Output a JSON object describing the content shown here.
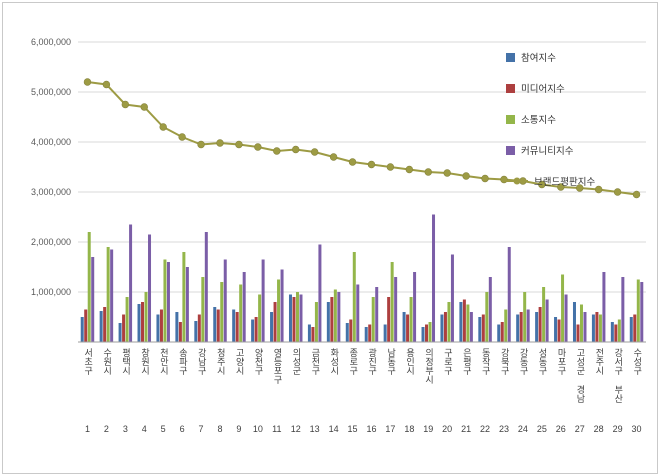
{
  "chart_data": {
    "type": "bar",
    "title": "",
    "xlabel": "",
    "ylabel": "",
    "ylim": [
      0,
      6000000
    ],
    "ytick_interval": 1000000,
    "ytick_labels": [
      "1,000,000",
      "2,000,000",
      "3,000,000",
      "4,000,000",
      "5,000,000",
      "6,000,000"
    ],
    "grid": true,
    "legend_position": "right-top",
    "categories": [
      "서초구",
      "수원시",
      "평택시",
      "창원시",
      "천안시",
      "송파구",
      "강남구",
      "청주시",
      "고양시",
      "양천구",
      "영등포구",
      "의성군",
      "금천구",
      "화성시",
      "종로구",
      "광진구",
      "남동구",
      "용인시",
      "의정부시",
      "구로구",
      "은평구",
      "동작구",
      "강북구",
      "강동구",
      "성동구",
      "마포구",
      "고성군 경남",
      "전주시",
      "강서구 부산",
      "수성구"
    ],
    "rank_labels": [
      "1",
      "2",
      "3",
      "4",
      "5",
      "6",
      "7",
      "8",
      "9",
      "10",
      "11",
      "12",
      "13",
      "14",
      "15",
      "16",
      "17",
      "18",
      "19",
      "20",
      "21",
      "22",
      "23",
      "24",
      "25",
      "26",
      "27",
      "28",
      "29",
      "30"
    ],
    "series": [
      {
        "name": "참여지수",
        "type": "bar",
        "color": "#4472a8",
        "values": [
          500000,
          620000,
          380000,
          760000,
          550000,
          600000,
          420000,
          700000,
          650000,
          450000,
          600000,
          950000,
          350000,
          800000,
          380000,
          300000,
          350000,
          600000,
          300000,
          550000,
          800000,
          500000,
          350000,
          550000,
          600000,
          500000,
          800000,
          550000,
          400000,
          500000
        ]
      },
      {
        "name": "미디어지수",
        "type": "bar",
        "color": "#ad3f3f",
        "values": [
          650000,
          700000,
          550000,
          800000,
          650000,
          400000,
          550000,
          650000,
          600000,
          500000,
          800000,
          900000,
          300000,
          900000,
          450000,
          350000,
          900000,
          550000,
          350000,
          600000,
          850000,
          550000,
          400000,
          600000,
          700000,
          450000,
          350000,
          600000,
          350000,
          550000
        ]
      },
      {
        "name": "소통지수",
        "type": "bar",
        "color": "#94b64a",
        "values": [
          2200000,
          1900000,
          900000,
          1000000,
          1650000,
          1800000,
          1300000,
          1200000,
          1150000,
          950000,
          1250000,
          1000000,
          800000,
          1050000,
          1800000,
          900000,
          1600000,
          900000,
          400000,
          800000,
          750000,
          1000000,
          650000,
          1000000,
          1100000,
          1350000,
          750000,
          550000,
          450000,
          1250000
        ]
      },
      {
        "name": "커뮤니티지수",
        "type": "bar",
        "color": "#7b5ea7",
        "values": [
          1700000,
          1850000,
          2350000,
          2150000,
          1600000,
          1500000,
          2200000,
          1650000,
          1400000,
          1650000,
          1450000,
          950000,
          1950000,
          1000000,
          1150000,
          1100000,
          1300000,
          1400000,
          2550000,
          1750000,
          600000,
          1300000,
          1900000,
          650000,
          850000,
          950000,
          600000,
          1400000,
          1300000,
          1200000
        ]
      },
      {
        "name": "브랜드평판지수",
        "type": "line",
        "color": "#9d9b44",
        "values": [
          5200000,
          5150000,
          4750000,
          4700000,
          4300000,
          4100000,
          3950000,
          3980000,
          3950000,
          3900000,
          3820000,
          3850000,
          3800000,
          3700000,
          3600000,
          3550000,
          3500000,
          3450000,
          3400000,
          3380000,
          3320000,
          3270000,
          3250000,
          3220000,
          3150000,
          3100000,
          3080000,
          3050000,
          3000000,
          2950000
        ]
      }
    ]
  }
}
